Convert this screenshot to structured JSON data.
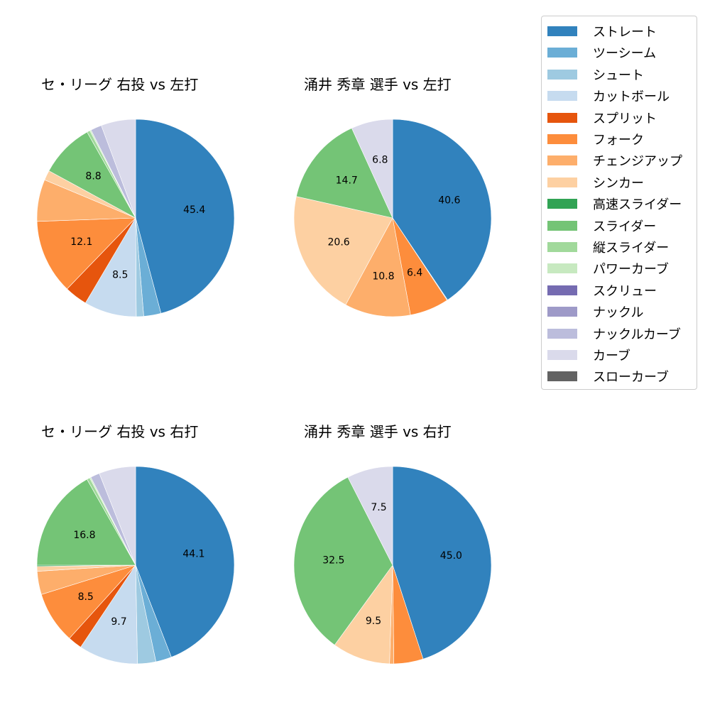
{
  "legend": {
    "items": [
      {
        "label": "ストレート",
        "color": "#3182bd"
      },
      {
        "label": "ツーシーム",
        "color": "#6baed6"
      },
      {
        "label": "シュート",
        "color": "#9ecae1"
      },
      {
        "label": "カットボール",
        "color": "#c6dbef"
      },
      {
        "label": "スプリット",
        "color": "#e6550d"
      },
      {
        "label": "フォーク",
        "color": "#fd8d3c"
      },
      {
        "label": "チェンジアップ",
        "color": "#fdae6b"
      },
      {
        "label": "シンカー",
        "color": "#fdd0a2"
      },
      {
        "label": "高速スライダー",
        "color": "#31a354"
      },
      {
        "label": "スライダー",
        "color": "#74c476"
      },
      {
        "label": "縦スライダー",
        "color": "#a1d99b"
      },
      {
        "label": "パワーカーブ",
        "color": "#c7e9c0"
      },
      {
        "label": "スクリュー",
        "color": "#756bb1"
      },
      {
        "label": "ナックル",
        "color": "#9e9ac8"
      },
      {
        "label": "ナックルカーブ",
        "color": "#bcbddc"
      },
      {
        "label": "カーブ",
        "color": "#dadaeb"
      },
      {
        "label": "スローカーブ",
        "color": "#636363"
      }
    ]
  },
  "panels": [
    {
      "title": "セ・リーグ 右投 vs 左打"
    },
    {
      "title": "涌井 秀章 選手 vs 左打"
    },
    {
      "title": "セ・リーグ 右投 vs 右打"
    },
    {
      "title": "涌井 秀章 選手 vs 右打"
    }
  ],
  "chart_data": [
    {
      "type": "pie",
      "title": "セ・リーグ 右投 vs 左打",
      "categories": [
        "ストレート",
        "ツーシーム",
        "シュート",
        "カットボール",
        "スプリット",
        "フォーク",
        "チェンジアップ",
        "シンカー",
        "高速スライダー",
        "スライダー",
        "縦スライダー",
        "パワーカーブ",
        "スクリュー",
        "ナックル",
        "ナックルカーブ",
        "カーブ",
        "スローカーブ"
      ],
      "values": [
        45.4,
        2.8,
        1.2,
        8.5,
        3.7,
        12.1,
        6.8,
        1.6,
        0.0,
        8.8,
        0.5,
        0.2,
        0.0,
        0.0,
        1.8,
        5.6,
        0.0
      ],
      "labels_shown": {
        "ストレート": "45.4",
        "カットボール": "8.5",
        "フォーク": "12.1",
        "スライダー": "8.8"
      },
      "start_angle": 90,
      "direction": "clockwise"
    },
    {
      "type": "pie",
      "title": "涌井 秀章 選手 vs 左打",
      "categories": [
        "ストレート",
        "ツーシーム",
        "シュート",
        "カットボール",
        "スプリット",
        "フォーク",
        "チェンジアップ",
        "シンカー",
        "高速スライダー",
        "スライダー",
        "縦スライダー",
        "パワーカーブ",
        "スクリュー",
        "ナックル",
        "ナックルカーブ",
        "カーブ",
        "スローカーブ"
      ],
      "values": [
        40.6,
        0.1,
        0.0,
        0.0,
        0.0,
        6.4,
        10.8,
        20.6,
        0.0,
        14.7,
        0.0,
        0.0,
        0.0,
        0.0,
        0.0,
        6.8,
        0.0
      ],
      "labels_shown": {
        "ストレート": "40.6",
        "フォーク": "6.4",
        "チェンジアップ": "10.8",
        "シンカー": "20.6",
        "スライダー": "14.7",
        "カーブ": "6.8"
      },
      "start_angle": 90,
      "direction": "clockwise"
    },
    {
      "type": "pie",
      "title": "セ・リーグ 右投 vs 右打",
      "categories": [
        "ストレート",
        "ツーシーム",
        "シュート",
        "カットボール",
        "スプリット",
        "フォーク",
        "チェンジアップ",
        "シンカー",
        "高速スライダー",
        "スライダー",
        "縦スライダー",
        "パワーカーブ",
        "スクリュー",
        "ナックル",
        "ナックルカーブ",
        "カーブ",
        "スローカーブ"
      ],
      "values": [
        44.1,
        2.6,
        3.0,
        9.7,
        2.3,
        8.5,
        3.8,
        0.8,
        0.2,
        16.8,
        0.5,
        0.2,
        0.0,
        0.0,
        1.5,
        6.0,
        0.0
      ],
      "labels_shown": {
        "ストレート": "44.1",
        "カットボール": "9.7",
        "フォーク": "8.5",
        "スライダー": "16.8"
      },
      "start_angle": 90,
      "direction": "clockwise"
    },
    {
      "type": "pie",
      "title": "涌井 秀章 選手 vs 右打",
      "categories": [
        "ストレート",
        "ツーシーム",
        "シュート",
        "カットボール",
        "スプリット",
        "フォーク",
        "チェンジアップ",
        "シンカー",
        "高速スライダー",
        "スライダー",
        "縦スライダー",
        "パワーカーブ",
        "スクリュー",
        "ナックル",
        "ナックルカーブ",
        "カーブ",
        "スローカーブ"
      ],
      "values": [
        45.0,
        0.0,
        0.0,
        0.0,
        0.0,
        4.8,
        0.7,
        9.5,
        0.0,
        32.5,
        0.0,
        0.0,
        0.0,
        0.0,
        0.0,
        7.5,
        0.0
      ],
      "labels_shown": {
        "ストレート": "45.0",
        "シンカー": "9.5",
        "スライダー": "32.5",
        "カーブ": "7.5"
      },
      "start_angle": 90,
      "direction": "clockwise"
    }
  ]
}
